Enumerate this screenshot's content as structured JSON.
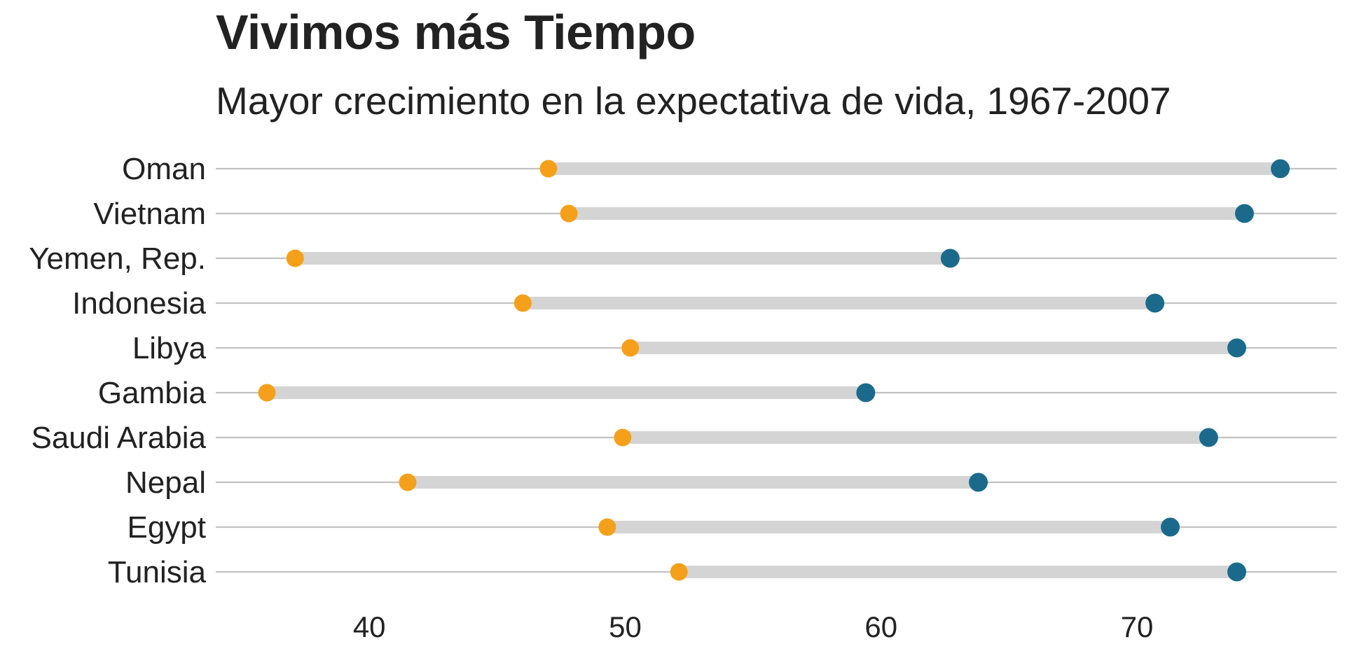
{
  "chart_data": {
    "type": "dumbbell",
    "title": "Vivimos más Tiempo",
    "subtitle": "Mayor crecimiento en la expectativa de vida, 1967-2007",
    "xlabel": "",
    "ylabel": "",
    "xlim": [
      34.0,
      77.8
    ],
    "xticks": [
      40,
      50,
      60,
      70
    ],
    "grid": true,
    "legend": "none",
    "colors": {
      "start": "#F5A01A",
      "end": "#1B6A8C",
      "segment": "#D4D4D4",
      "gridline": "#C2C2C2"
    },
    "categories": [
      "Oman",
      "Vietnam",
      "Yemen, Rep.",
      "Indonesia",
      "Libya",
      "Gambia",
      "Saudi Arabia",
      "Nepal",
      "Egypt",
      "Tunisia"
    ],
    "series": [
      {
        "values": [
          47.0,
          47.8,
          37.1,
          46.0,
          50.2,
          36.0,
          49.9,
          41.5,
          49.3,
          52.1
        ]
      },
      {
        "values": [
          75.6,
          74.2,
          62.7,
          70.7,
          73.9,
          59.4,
          72.8,
          63.8,
          71.3,
          73.9
        ]
      }
    ]
  }
}
